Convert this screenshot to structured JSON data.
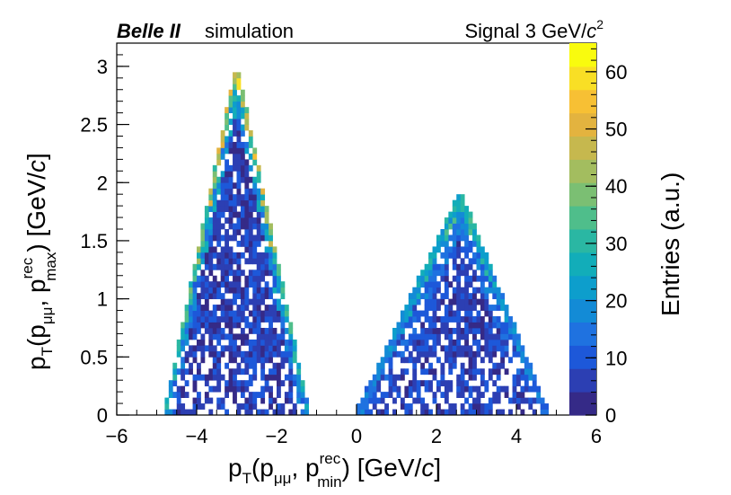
{
  "chart_data": {
    "type": "heatmap",
    "header": {
      "experiment": "Belle II",
      "tag": "simulation",
      "signal_prefix": "Signal 3 GeV/",
      "signal_unit_var": "c",
      "signal_unit_exp": "2"
    },
    "xaxis": {
      "label": "p_T(p_μμ, p_min^rec) [GeV/c]",
      "label_main": "p",
      "label_sub": "T",
      "label_open": "(p",
      "label_mu": "μμ",
      "label_comma": ", p",
      "label_sup": "rec",
      "label_sub2": "min",
      "label_close": ") [GeV/",
      "label_var": "c",
      "label_end": "]",
      "range": [
        -6,
        6
      ],
      "ticks": [
        "−6",
        "−4",
        "−2",
        "0",
        "2",
        "4",
        "6"
      ]
    },
    "yaxis": {
      "label": "p_T(p_μμ, p_max^rec) [GeV/c]",
      "label_main": "p",
      "label_sub": "T",
      "label_open": "(p",
      "label_mu": "μμ",
      "label_comma": ", p",
      "label_sup": "rec",
      "label_sub2": "max",
      "label_close": ") [GeV/",
      "label_var": "c",
      "label_end": "]",
      "range": [
        0,
        3.2
      ],
      "ticks": [
        "0",
        "0.5",
        "1",
        "1.5",
        "2",
        "2.5",
        "3"
      ]
    },
    "zaxis": {
      "label": "Entries (a.u.)",
      "range": [
        0,
        65
      ],
      "ticks": [
        "0",
        "10",
        "20",
        "30",
        "40",
        "50",
        "60"
      ]
    },
    "bins": {
      "x_width": 0.1,
      "y_width": 0.05
    },
    "regions": [
      {
        "name": "left-lobe",
        "apex_x": -3.0,
        "apex_y": 3.0,
        "base_x": [
          -4.8,
          -1.2
        ],
        "max_entries": 62
      },
      {
        "name": "right-lobe",
        "apex_x": 2.6,
        "apex_y": 1.9,
        "base_x": [
          0.0,
          4.8
        ],
        "max_entries": 36
      }
    ],
    "palette": [
      "#352a87",
      "#2c3fb3",
      "#1d58d9",
      "#1f72e0",
      "#138bd6",
      "#0d9ecc",
      "#12adb9",
      "#2ab7a3",
      "#4fbe8b",
      "#7bbf73",
      "#a3bd5f",
      "#c6b84e",
      "#e3b33f",
      "#f7c034",
      "#f9df25",
      "#f9fb0e"
    ]
  }
}
